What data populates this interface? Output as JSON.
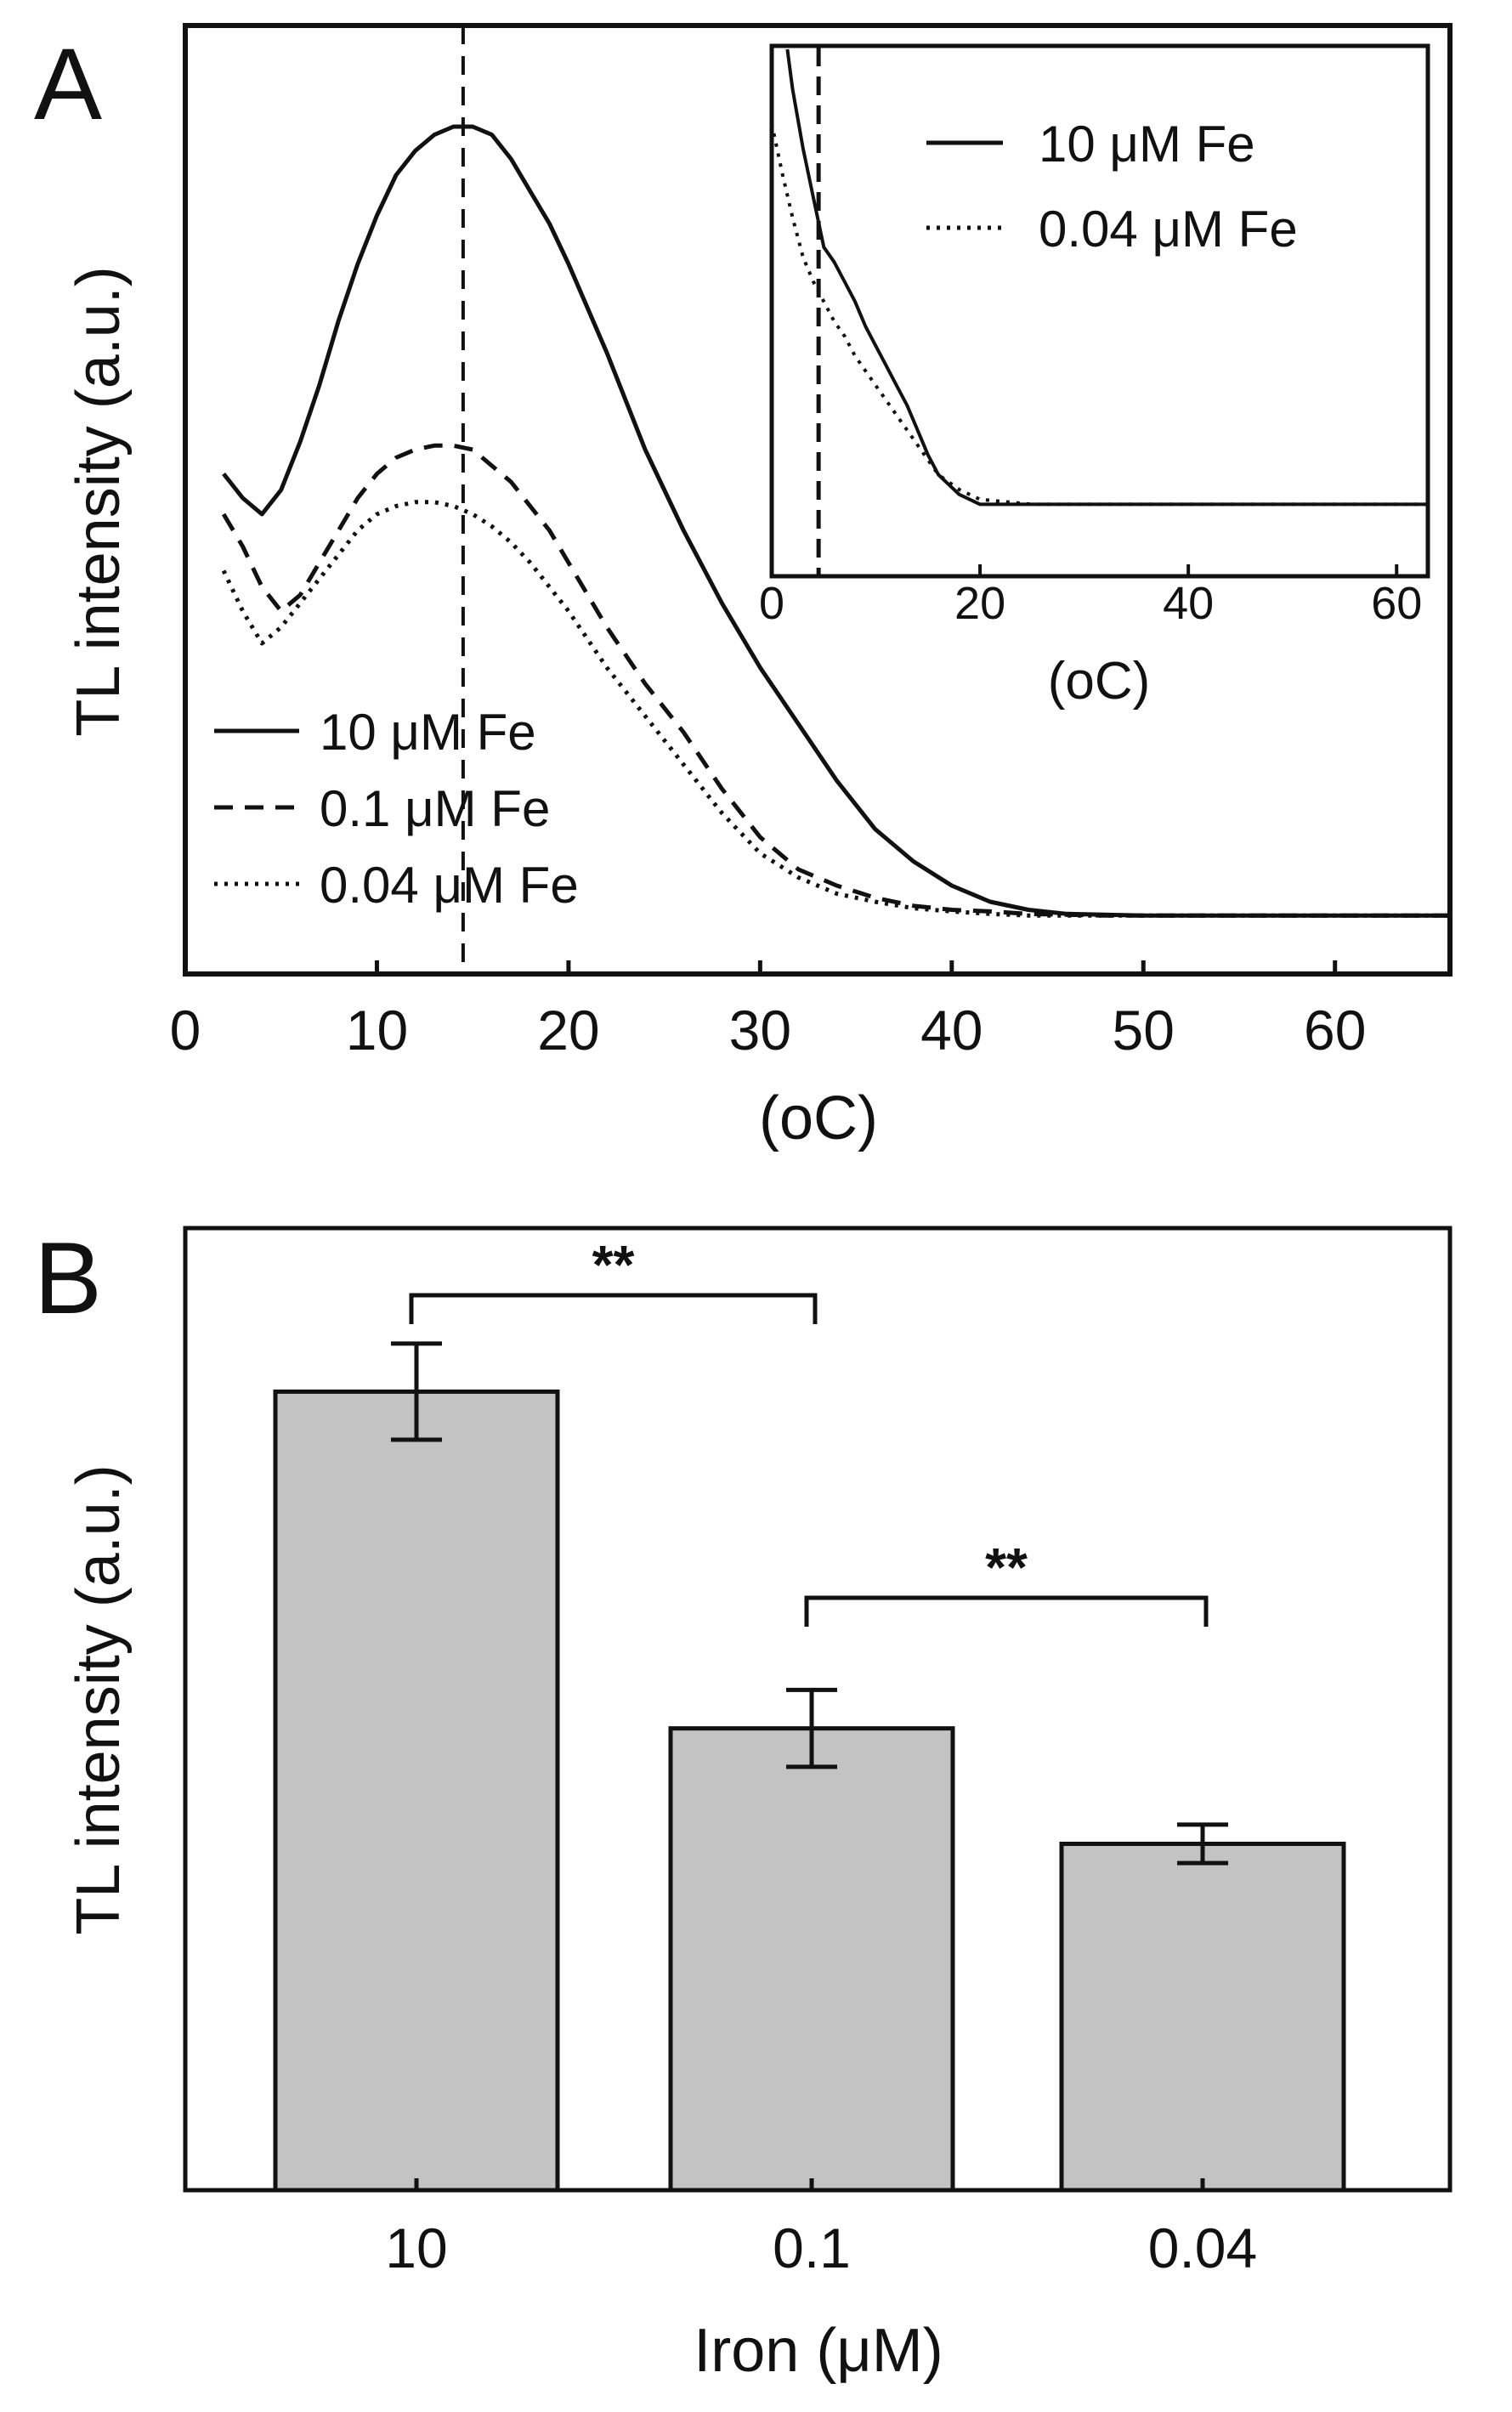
{
  "chart_data": [
    {
      "panel": "A",
      "type": "line",
      "title": "",
      "xlabel": "(oC)",
      "ylabel": "TL intensity (a.u.)",
      "xlim": [
        0,
        66
      ],
      "ylim": [
        0,
        100
      ],
      "xticks": [
        0,
        10,
        20,
        30,
        40,
        50,
        60
      ],
      "marker_x": 14.5,
      "series": [
        {
          "name": "10 μM Fe",
          "style": "solid",
          "x": [
            2,
            3,
            4,
            5,
            6,
            7,
            8,
            9,
            10,
            11,
            12,
            13,
            14,
            15,
            16,
            17,
            18,
            19,
            20,
            22,
            24,
            26,
            28,
            30,
            32,
            34,
            36,
            38,
            40,
            42,
            44,
            46,
            50,
            55,
            60,
            66
          ],
          "y": [
            55,
            52,
            50,
            53,
            59,
            66,
            74,
            81,
            87,
            92,
            95,
            97,
            98,
            98,
            97,
            94,
            90,
            86,
            81,
            70,
            58,
            48,
            39,
            31,
            24,
            17,
            11,
            7,
            4,
            2,
            1,
            0.5,
            0.3,
            0.3,
            0.3,
            0.3
          ]
        },
        {
          "name": "0.1 μM Fe",
          "style": "dashed",
          "x": [
            2,
            3,
            4,
            5,
            6,
            7,
            8,
            9,
            10,
            11,
            12,
            13,
            14,
            15,
            16,
            17,
            18,
            19,
            20,
            22,
            24,
            26,
            28,
            30,
            32,
            34,
            36,
            38,
            40,
            42,
            44,
            48,
            55,
            66
          ],
          "y": [
            50,
            46,
            41,
            38,
            40,
            44,
            48,
            52,
            55,
            57,
            58,
            58.5,
            58.5,
            58,
            56,
            54,
            51,
            48,
            44,
            36,
            29,
            23,
            16,
            10,
            6,
            4,
            2.5,
            1.5,
            1,
            0.8,
            0.5,
            0.3,
            0.3,
            0.3
          ]
        },
        {
          "name": "0.04 μM Fe",
          "style": "dotted",
          "x": [
            2,
            3,
            4,
            5,
            6,
            7,
            8,
            9,
            10,
            11,
            12,
            13,
            14,
            15,
            16,
            17,
            18,
            19,
            20,
            22,
            24,
            26,
            28,
            30,
            32,
            34,
            36,
            38,
            40,
            42,
            44,
            48,
            55,
            66
          ],
          "y": [
            43,
            38,
            34,
            36,
            39,
            42,
            45,
            48,
            50,
            51,
            51.5,
            51.5,
            51,
            50,
            48.5,
            46.5,
            44,
            41,
            38,
            31,
            25,
            19,
            13,
            8,
            5,
            3,
            2,
            1.2,
            0.8,
            0.5,
            0.3,
            0.3,
            0.3,
            0.3
          ]
        }
      ],
      "inset": {
        "xlabel": "(oC)",
        "xlim": [
          0,
          63
        ],
        "ylim": [
          0,
          100
        ],
        "xticks": [
          0,
          20,
          40,
          60
        ],
        "marker_x": 4.5,
        "series": [
          {
            "name": "10 μM Fe",
            "style": "solid",
            "x": [
              1.5,
              2,
              3,
              4,
              5,
              6,
              7,
              8,
              9,
              10,
              11,
              12,
              13,
              14,
              15,
              16,
              18,
              20,
              25,
              30,
              40,
              50,
              63
            ],
            "y": [
              100,
              92,
              80,
              70,
              60,
              57,
              53,
              49,
              44,
              40,
              36,
              32,
              28,
              23,
              18,
              14,
              10,
              8,
              8,
              8,
              8,
              8,
              8
            ]
          },
          {
            "name": "0.04 μM Fe",
            "style": "dotted",
            "x": [
              0,
              1,
              2,
              3,
              4,
              5,
              6,
              7,
              8,
              9,
              10,
              11,
              12,
              13,
              14,
              15,
              16,
              18,
              20,
              25,
              30,
              40,
              50,
              63
            ],
            "y": [
              85,
              75,
              66,
              58,
              53,
              49,
              45,
              42,
              38,
              35,
              32,
              29,
              26,
              23,
              20,
              17,
              14,
              11,
              9,
              8,
              8,
              8,
              8,
              8
            ]
          }
        ]
      }
    },
    {
      "panel": "B",
      "type": "bar",
      "title": "",
      "xlabel": "Iron (μM)",
      "ylabel": "TL intensity (a.u.)",
      "categories": [
        "10",
        "0.1",
        "0.04"
      ],
      "values": [
        83,
        48,
        36
      ],
      "errors": [
        5,
        4,
        2
      ],
      "ylim": [
        0,
        100
      ],
      "significance": [
        {
          "from": "10",
          "to": "0.1",
          "label": "**"
        },
        {
          "from": "0.1",
          "to": "0.04",
          "label": "**"
        }
      ]
    }
  ],
  "colors": {
    "line": "#111111",
    "bar_fill": "#c3c3c3",
    "background": "#ffffff"
  }
}
